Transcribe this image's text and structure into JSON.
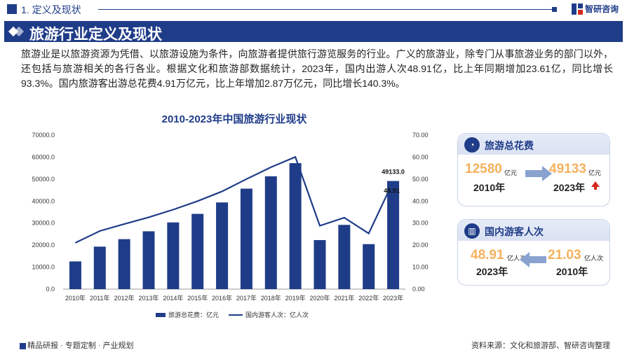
{
  "header": {
    "section": "1. 定义及现状",
    "brand": "智研咨询",
    "title": "旅游行业定义及现状"
  },
  "intro": "旅游业是以旅游资源为凭借、以旅游设施为条件，向旅游者提供旅行游览服务的行业。广义的旅游业，除专门从事旅游业务的部门以外，还包括与旅游相关的各行各业。根据文化和旅游部数据统计，2023年，国内出游人次48.91亿，比上年同期增加23.61亿，同比增长93.3%。国内旅游客出游总花费4.91万亿元，比上年增加2.87万亿元，同比增长140.3%。",
  "chart_data": {
    "type": "bar",
    "title": "2010-2023年中国旅游行业现状",
    "categories": [
      "2010年",
      "2011年",
      "2012年",
      "2013年",
      "2014年",
      "2015年",
      "2016年",
      "2017年",
      "2018年",
      "2019年",
      "2020年",
      "2021年",
      "2022年",
      "2023年"
    ],
    "series": [
      {
        "name": "旅游总花费：亿元",
        "type": "bar",
        "axis": "left",
        "color": "#1f3c88",
        "values": [
          12580,
          19305,
          22706,
          26276,
          30312,
          34195,
          39390,
          45661,
          51278,
          57251,
          22286,
          29191,
          20444,
          49133
        ]
      },
      {
        "name": "国内游客人次：亿人次",
        "type": "line",
        "axis": "right",
        "color": "#1f3c88",
        "values": [
          21.03,
          26.41,
          29.57,
          32.62,
          36.11,
          40.0,
          44.4,
          50.01,
          55.39,
          60.06,
          28.79,
          32.46,
          25.3,
          48.91
        ]
      }
    ],
    "left_axis": {
      "min": 0,
      "max": 70000,
      "ticks": [
        "0.0",
        "10000.0",
        "20000.0",
        "30000.0",
        "40000.0",
        "50000.0",
        "60000.0",
        "70000.0"
      ]
    },
    "right_axis": {
      "min": 0,
      "max": 70,
      "ticks": [
        "0.00",
        "10.00",
        "20.00",
        "30.00",
        "40.00",
        "50.00",
        "60.00",
        "70.00"
      ]
    },
    "labels": {
      "last_bar": "49133.0",
      "last_line": "48.91"
    }
  },
  "card1": {
    "title": "旅游总花费",
    "from_value": "12580",
    "from_unit": "亿元",
    "from_year": "2010年",
    "to_value": "49133",
    "to_unit": "亿元",
    "to_year": "2023年"
  },
  "card2": {
    "title": "国内游客人次",
    "left_value": "48.91",
    "left_unit": "亿人次",
    "left_year": "2023年",
    "right_value": "21.03",
    "right_unit": "亿人次",
    "right_year": "2010年"
  },
  "footer": {
    "items": "精品研报 · 专题定制 · 产业规划",
    "source": "资料来源：文化和旅游部、智研咨询整理"
  },
  "colors": {
    "primary": "#1f3c88",
    "accent": "#f5b15c",
    "up": "#d8271c"
  }
}
